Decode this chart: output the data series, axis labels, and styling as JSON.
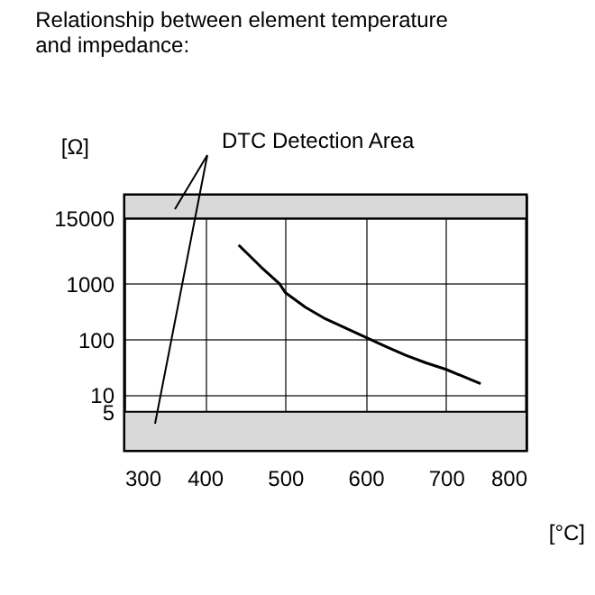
{
  "chart_data": {
    "type": "line",
    "title": "Relationship between element temperature and impedance:",
    "xlabel": "[°C]",
    "ylabel": "[Ω]",
    "x": [
      442,
      470,
      493,
      500,
      525,
      550,
      575,
      600,
      625,
      650,
      675,
      700,
      743
    ],
    "series": [
      {
        "color": "#000000",
        "values": [
          5000,
          2000,
          1000,
          700,
          380,
          235,
          160,
          110,
          75,
          52,
          38,
          29,
          16
        ]
      }
    ],
    "xlim": [
      300,
      800
    ],
    "xticks": [
      300,
      400,
      500,
      600,
      700,
      800
    ],
    "ylim": [
      1,
      40000
    ],
    "yticks": [
      5,
      10,
      100,
      1000,
      15000
    ],
    "log": "y",
    "grid": true,
    "bands": [
      {
        "axis": "y",
        "from": 15000,
        "to": 40000,
        "color": "#d9d9d9"
      },
      {
        "axis": "y",
        "from": 1,
        "to": 5,
        "color": "#d9d9d9"
      }
    ],
    "annotations": [
      "DTC Detection Area"
    ]
  }
}
